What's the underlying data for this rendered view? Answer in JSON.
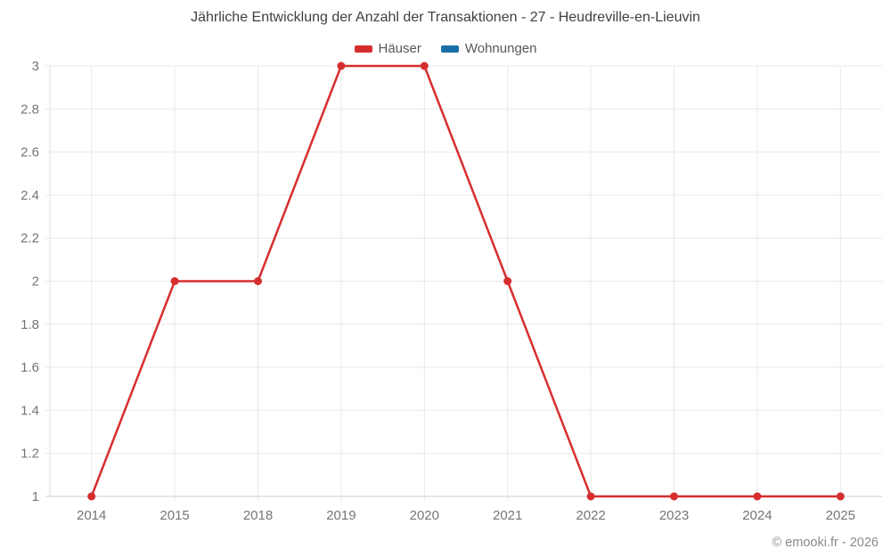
{
  "title": "Jährliche Entwicklung der Anzahl der Transaktionen - 27 - Heudreville-en-Lieuvin",
  "footer": {
    "credit": "© emooki.fr - 2026"
  },
  "colors": {
    "hauser_red": "#d62e2e",
    "wohnungen_blue": "#1a70a4",
    "grid": "#e9e9e9",
    "axis_line": "#cccccc",
    "tick_text": "#757575"
  },
  "chart_data": {
    "type": "line",
    "title": "Jährliche Entwicklung der Anzahl der Transaktionen - 27 - Heudreville-en-Lieuvin",
    "categories": [
      "2014",
      "2015",
      "2018",
      "2019",
      "2020",
      "2021",
      "2022",
      "2023",
      "2024",
      "2025"
    ],
    "series": [
      {
        "name": "Häuser",
        "color": "#d62e2e",
        "values": [
          1,
          2,
          2,
          3,
          3,
          2,
          1,
          1,
          1,
          1
        ]
      },
      {
        "name": "Wohnungen",
        "color": "#1a70a4",
        "values": []
      }
    ],
    "xlabel": "",
    "ylabel": "",
    "ylim": [
      1,
      3
    ],
    "yticks": [
      1,
      1.2,
      1.4,
      1.6,
      1.8,
      2,
      2.2,
      2.4,
      2.6,
      2.8,
      3
    ],
    "grid": true,
    "legend_position": "top"
  }
}
